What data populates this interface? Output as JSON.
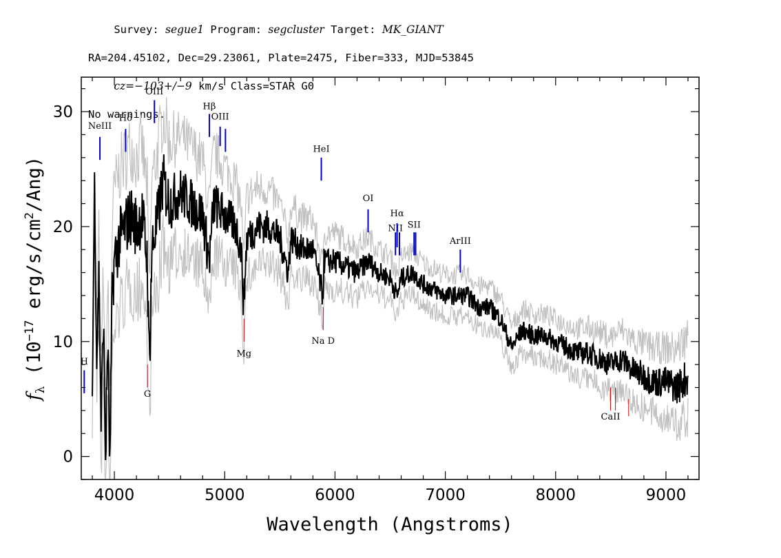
{
  "header": {
    "line1": [
      {
        "text": "Survey: ",
        "italic": false
      },
      {
        "text": "segue1",
        "italic": true
      },
      {
        "text": " Program: ",
        "italic": false
      },
      {
        "text": "segcluster",
        "italic": true
      },
      {
        "text": " Target: ",
        "italic": false
      },
      {
        "text": "MK_GIANT",
        "italic": true
      }
    ],
    "line2": "RA=204.45102, Dec=29.23061, Plate=2475, Fiber=333, MJD=53845",
    "line3": [
      {
        "text": "cz=−103+/−9",
        "italic": true
      },
      {
        "text": " km/s Class=STAR G0",
        "italic": false
      }
    ],
    "line4": "No warnings."
  },
  "chart_data": {
    "type": "line",
    "xlabel": "Wavelength (Angstroms)",
    "ylabel": "f_λ (10^-17 erg/s/cm^2/Ang)",
    "xlim": [
      3700,
      9300
    ],
    "ylim": [
      -2,
      33
    ],
    "xticks": [
      4000,
      5000,
      6000,
      7000,
      8000,
      9000
    ],
    "yticks": [
      0,
      10,
      20,
      30
    ],
    "grid": false,
    "colors": {
      "flux": "#000000",
      "error": "#c0c0c0",
      "emission": "#0000cc",
      "absorption": "#cc0000"
    },
    "series": [
      {
        "role": "flux",
        "points": [
          [
            3800,
            5
          ],
          [
            3820,
            24
          ],
          [
            3840,
            8
          ],
          [
            3860,
            16
          ],
          [
            3880,
            3
          ],
          [
            3900,
            12
          ],
          [
            3920,
            0
          ],
          [
            3940,
            10
          ],
          [
            3960,
            -1
          ],
          [
            3980,
            14
          ],
          [
            4000,
            17
          ],
          [
            4050,
            19
          ],
          [
            4100,
            20
          ],
          [
            4150,
            21
          ],
          [
            4200,
            20
          ],
          [
            4250,
            21
          ],
          [
            4300,
            17
          ],
          [
            4310,
            10
          ],
          [
            4320,
            9
          ],
          [
            4340,
            18
          ],
          [
            4400,
            21
          ],
          [
            4440,
            24
          ],
          [
            4500,
            22
          ],
          [
            4600,
            23
          ],
          [
            4700,
            22
          ],
          [
            4800,
            21
          ],
          [
            4861,
            17
          ],
          [
            4900,
            22
          ],
          [
            5000,
            21
          ],
          [
            5100,
            20
          ],
          [
            5150,
            18
          ],
          [
            5172,
            13
          ],
          [
            5200,
            19
          ],
          [
            5300,
            20
          ],
          [
            5400,
            20
          ],
          [
            5500,
            19
          ],
          [
            5577,
            16
          ],
          [
            5600,
            19
          ],
          [
            5700,
            18
          ],
          [
            5800,
            18
          ],
          [
            5890,
            14
          ],
          [
            5900,
            17
          ],
          [
            6000,
            17
          ],
          [
            6100,
            16.5
          ],
          [
            6200,
            16
          ],
          [
            6300,
            17
          ],
          [
            6400,
            16
          ],
          [
            6500,
            15.5
          ],
          [
            6563,
            14
          ],
          [
            6600,
            15.5
          ],
          [
            6700,
            16
          ],
          [
            6800,
            15
          ],
          [
            6900,
            14.5
          ],
          [
            7000,
            14
          ],
          [
            7100,
            14
          ],
          [
            7200,
            14
          ],
          [
            7300,
            13
          ],
          [
            7400,
            13
          ],
          [
            7500,
            12
          ],
          [
            7600,
            9.5
          ],
          [
            7700,
            11
          ],
          [
            7800,
            10.5
          ],
          [
            7900,
            10.5
          ],
          [
            8000,
            10
          ],
          [
            8100,
            9.5
          ],
          [
            8200,
            9
          ],
          [
            8300,
            9
          ],
          [
            8400,
            8.5
          ],
          [
            8500,
            8
          ],
          [
            8600,
            8.5
          ],
          [
            8700,
            7.5
          ],
          [
            8800,
            7
          ],
          [
            8900,
            6.5
          ],
          [
            9000,
            6.5
          ],
          [
            9100,
            6
          ],
          [
            9200,
            7
          ]
        ]
      },
      {
        "role": "error",
        "points": [
          [
            3800,
            2
          ],
          [
            3900,
            4
          ],
          [
            4000,
            5
          ],
          [
            4200,
            5
          ],
          [
            4400,
            5
          ],
          [
            4600,
            4
          ],
          [
            4800,
            4
          ],
          [
            5000,
            3.5
          ],
          [
            5200,
            3
          ],
          [
            5500,
            2.5
          ],
          [
            5800,
            2.2
          ],
          [
            6000,
            2
          ],
          [
            6500,
            1.6
          ],
          [
            7000,
            1.5
          ],
          [
            7500,
            1.5
          ],
          [
            8000,
            1.6
          ],
          [
            8500,
            2
          ],
          [
            9000,
            2.5
          ],
          [
            9200,
            3
          ]
        ]
      }
    ],
    "annotations": [
      {
        "label": "H",
        "wavelength": 3727,
        "kind": "emission",
        "text_y": 8,
        "y_top": 7.5,
        "y_bottom": 5.5
      },
      {
        "label": "NeIII",
        "wavelength": 3869,
        "kind": "emission",
        "text_y": 28.5,
        "y_top": 27.8,
        "y_bottom": 25.8
      },
      {
        "label": "Hδ",
        "wavelength": 4102,
        "kind": "emission",
        "text_y": 29.2,
        "y_top": 28.5,
        "y_bottom": 26.5
      },
      {
        "label": "G",
        "wavelength": 4300,
        "kind": "absorption",
        "text_y": 5.2,
        "y_top": 8,
        "y_bottom": 6
      },
      {
        "label": "OIII",
        "wavelength": 4363,
        "kind": "emission",
        "text_y": 31.5,
        "y_top": 31,
        "y_bottom": 29
      },
      {
        "label": "Hβ",
        "wavelength": 4861,
        "kind": "emission",
        "text_y": 30.2,
        "y_top": 29.8,
        "y_bottom": 27.8
      },
      {
        "label": "OIII",
        "wavelength": 4959,
        "kind": "emission",
        "text_y": 29.3,
        "y_top": 28.7,
        "y_bottom": 27
      },
      {
        "label": "OIII",
        "wavelength": 5007,
        "kind": "emission",
        "y_top": 28.5,
        "y_bottom": 26.5
      },
      {
        "label": "Mg",
        "wavelength": 5175,
        "kind": "absorption",
        "text_y": 8.7,
        "y_top": 12,
        "y_bottom": 10
      },
      {
        "label": "HeI",
        "wavelength": 5876,
        "kind": "emission",
        "text_y": 26.5,
        "y_top": 26,
        "y_bottom": 24
      },
      {
        "label": "Na D",
        "wavelength": 5893,
        "kind": "absorption",
        "text_y": 9.8,
        "y_top": 13,
        "y_bottom": 11
      },
      {
        "label": "OI",
        "wavelength": 6300,
        "kind": "emission",
        "text_y": 22.2,
        "y_top": 21.5,
        "y_bottom": 19.5
      },
      {
        "label": "NII",
        "wavelength": 6548,
        "kind": "emission",
        "text_y": 19.6,
        "y_top": 19.5,
        "y_bottom": 17.5
      },
      {
        "label": "Hα",
        "wavelength": 6563,
        "kind": "emission",
        "text_y": 20.9,
        "y_top": 20.3,
        "y_bottom": 18.2
      },
      {
        "label": "NII",
        "wavelength": 6584,
        "kind": "emission",
        "y_top": 19.5,
        "y_bottom": 17.5
      },
      {
        "label": "SII",
        "wavelength": 6717,
        "kind": "emission",
        "text_y": 19.9,
        "y_top": 19.5,
        "y_bottom": 17.5
      },
      {
        "label": "SII",
        "wavelength": 6731,
        "kind": "emission",
        "y_top": 19.5,
        "y_bottom": 17.5
      },
      {
        "label": "ArIII",
        "wavelength": 7136,
        "kind": "emission",
        "text_y": 18.5,
        "y_top": 18,
        "y_bottom": 16
      },
      {
        "label": "CaII",
        "wavelength": 8498,
        "kind": "absorption",
        "text_y": 3.2,
        "y_top": 6,
        "y_bottom": 4
      },
      {
        "label": "CaII",
        "wavelength": 8542,
        "kind": "absorption",
        "y_top": 6,
        "y_bottom": 4
      },
      {
        "label": "CaII",
        "wavelength": 8662,
        "kind": "absorption",
        "y_top": 5,
        "y_bottom": 3.5
      }
    ]
  }
}
